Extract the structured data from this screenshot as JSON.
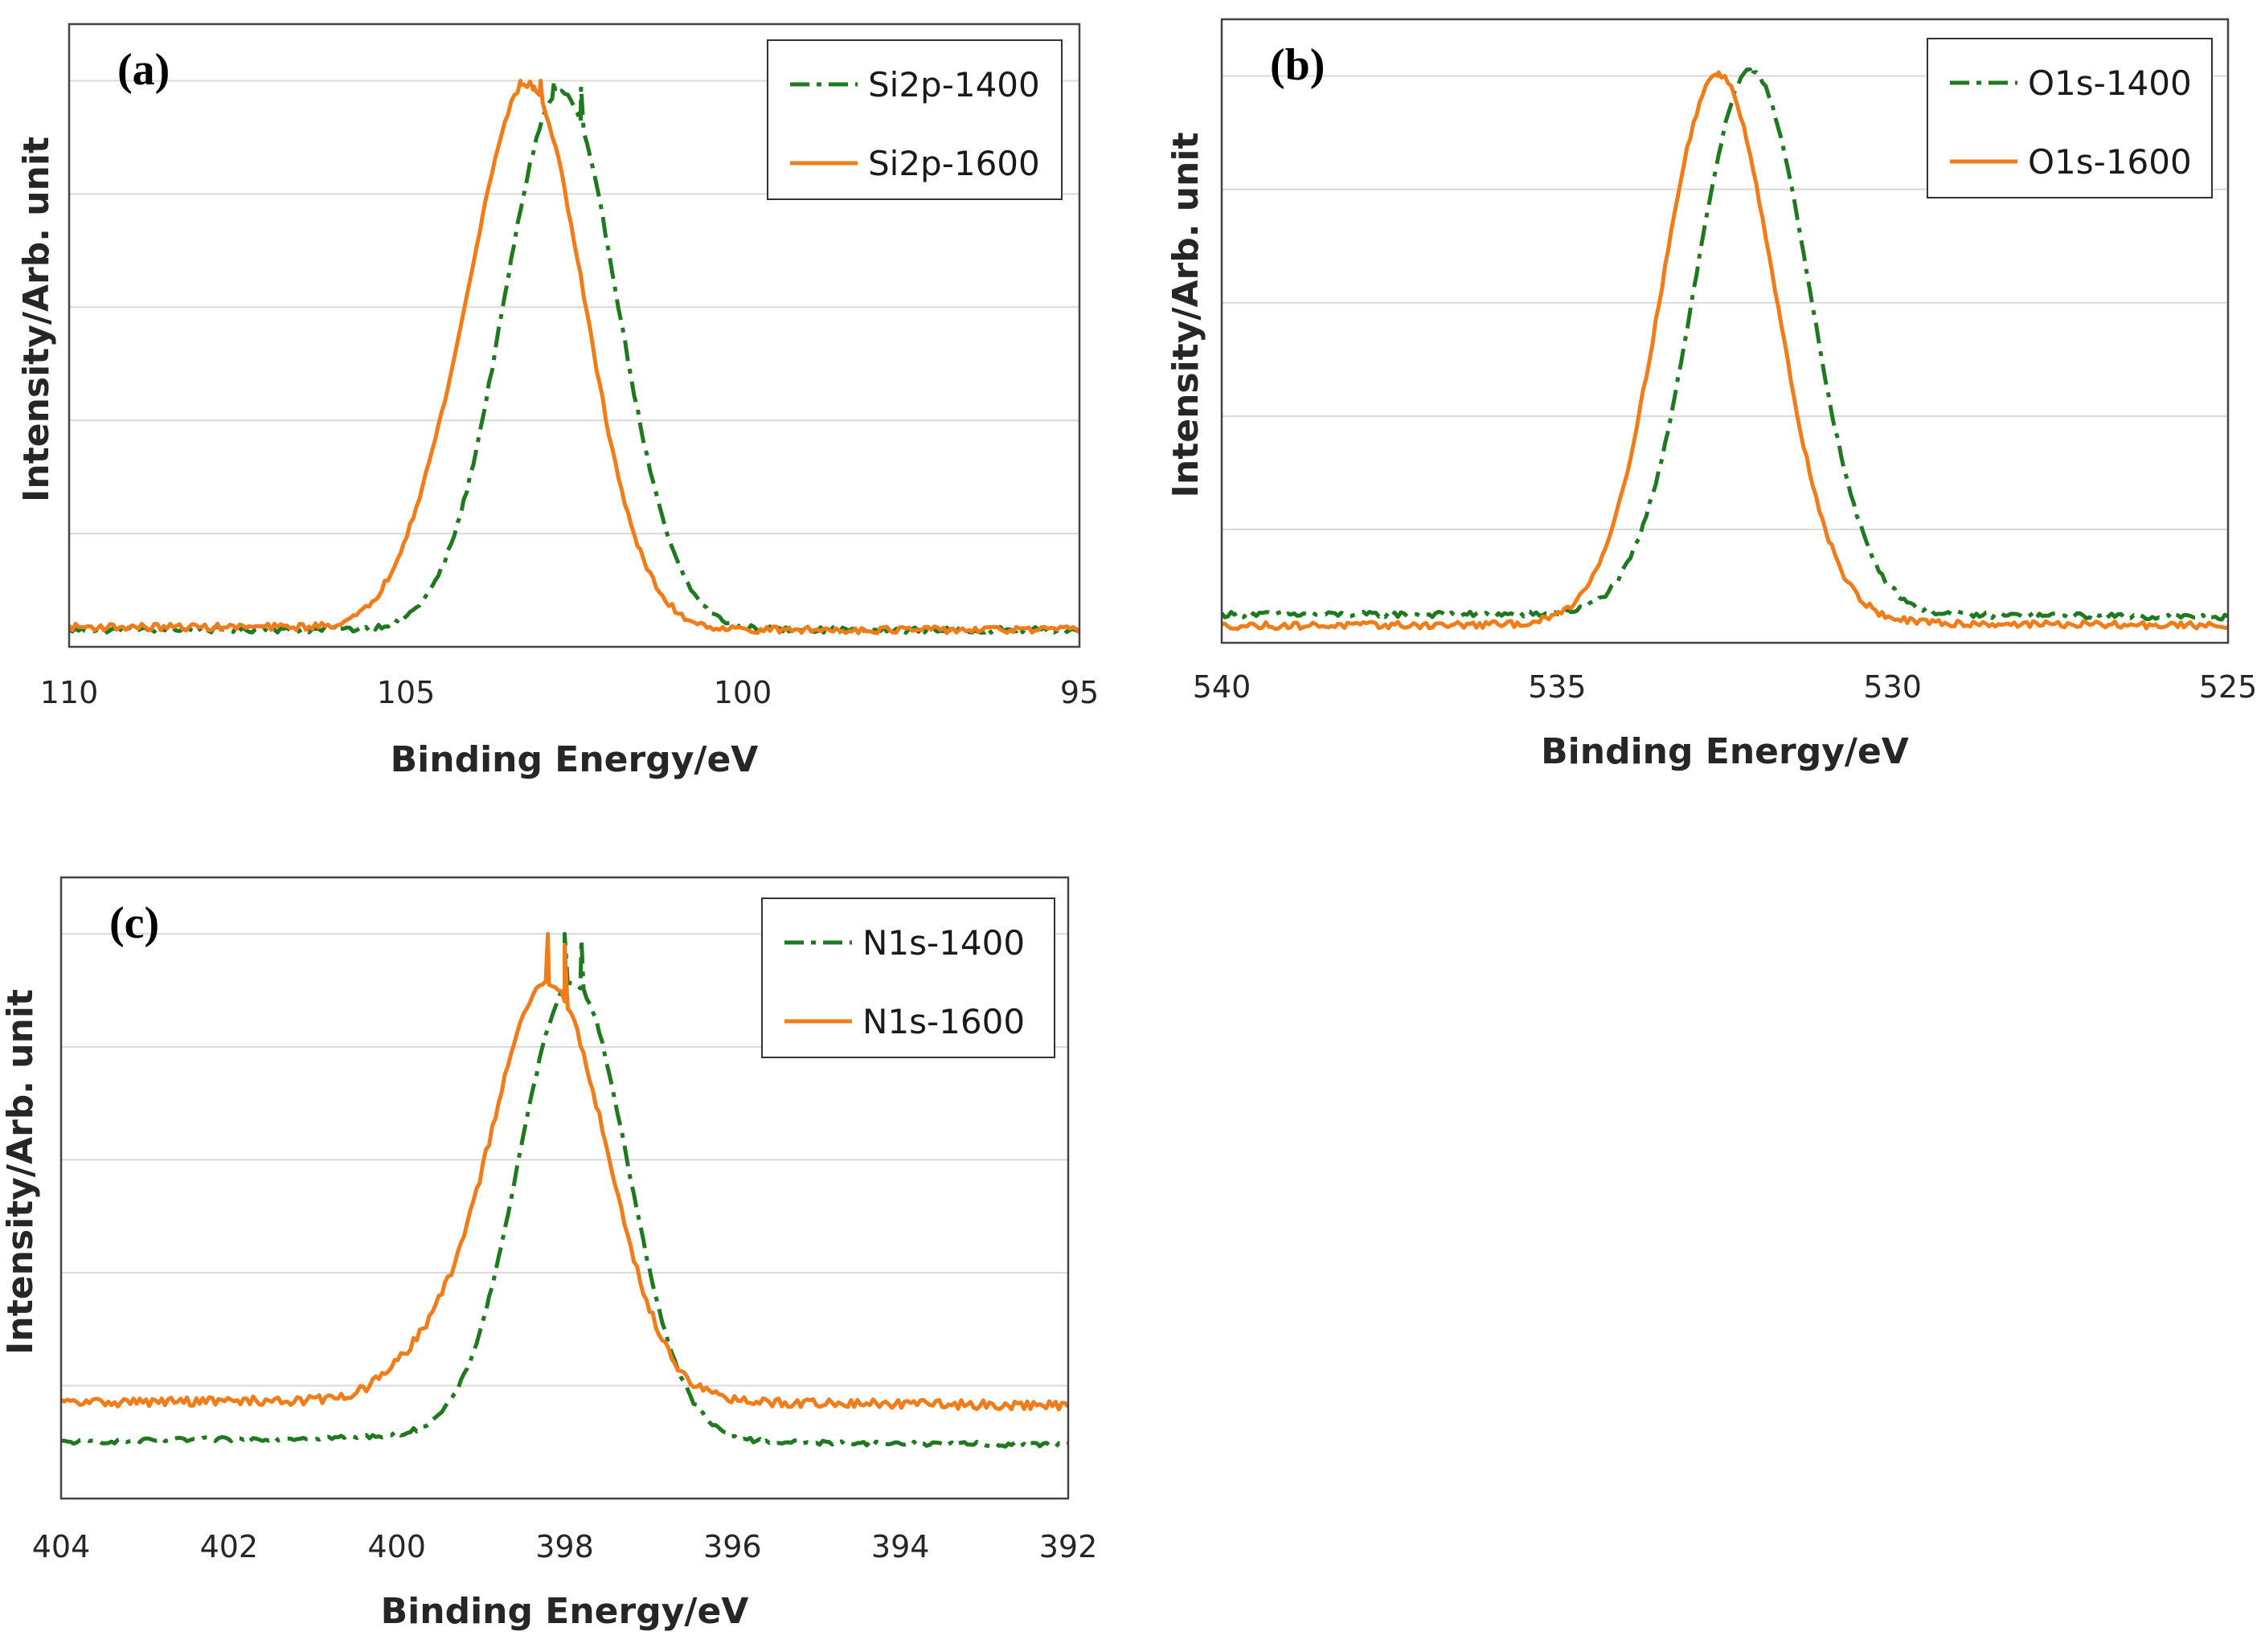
{
  "figure": {
    "background": "#ffffff"
  },
  "colors": {
    "series_1400": "#1f7a1f",
    "series_1600": "#f07d19"
  },
  "chart_data": [
    {
      "id": "a",
      "panel_label": "(a)",
      "type": "line",
      "title": "",
      "xlabel": "Binding Energy/eV",
      "ylabel": "Intensity/Arb. unit",
      "xlim": [
        110,
        95
      ],
      "ylim": [
        0,
        1.1
      ],
      "x_ticks": [
        110,
        105,
        100,
        95
      ],
      "y_gridlines": [
        0.2,
        0.4,
        0.6,
        0.8,
        1.0
      ],
      "grid": true,
      "legend_position": "top-right",
      "series": [
        {
          "name": "Si2p-1400",
          "style": "dashdot",
          "color": "#1f7a1f",
          "peak": 102.7,
          "sigma": 0.85,
          "amplitude": 0.95,
          "baseline": [
            0.03,
            0.03,
            0.03,
            0.03
          ],
          "noise": 0.005,
          "line_points": [
            [
              102.8,
              1.0
            ],
            [
              102.4,
              0.99
            ]
          ]
        },
        {
          "name": "Si2p-1600",
          "style": "solid",
          "color": "#f07d19",
          "peak": 103.2,
          "sigma": 0.85,
          "amplitude": 0.96,
          "baseline": [
            0.035,
            0.035,
            0.03,
            0.03
          ],
          "noise": 0.006,
          "shoulder": {
            "center": 104.7,
            "sigma": 0.5,
            "amplitude": 0.07
          },
          "line_points": [
            [
              103.3,
              1.0
            ],
            [
              103.1,
              0.99
            ],
            [
              103.0,
              1.0
            ]
          ]
        }
      ]
    },
    {
      "id": "b",
      "panel_label": "(b)",
      "type": "line",
      "title": "",
      "xlabel": "Binding Energy/eV",
      "ylabel": "Intensity/Arb. unit",
      "xlim": [
        540,
        525
      ],
      "ylim": [
        0,
        1.1
      ],
      "x_ticks": [
        540,
        535,
        530,
        525
      ],
      "y_gridlines": [
        0.2,
        0.4,
        0.6,
        0.8,
        1.0
      ],
      "grid": true,
      "legend_position": "top-right",
      "series": [
        {
          "name": "O1s-1400",
          "style": "dashdot",
          "color": "#1f7a1f",
          "peak": 532.1,
          "sigma": 0.85,
          "amplitude": 0.96,
          "baseline": [
            0.05,
            0.05,
            0.05,
            0.045
          ],
          "noise": 0.005,
          "line_points": [
            [
              532.1,
              1.0
            ]
          ]
        },
        {
          "name": "O1s-1600",
          "style": "solid",
          "color": "#f07d19",
          "peak": 532.6,
          "sigma": 0.85,
          "amplitude": 0.97,
          "baseline": [
            0.03,
            0.032,
            0.035,
            0.03
          ],
          "noise": 0.006,
          "line_points": [
            [
              532.6,
              1.0
            ]
          ]
        }
      ]
    },
    {
      "id": "c",
      "panel_label": "(c)",
      "type": "line",
      "title": "",
      "xlabel": "Binding Energy/eV",
      "ylabel": "Intensity/Arb. unit",
      "xlim": [
        404,
        392
      ],
      "ylim": [
        0,
        1.1
      ],
      "x_ticks": [
        404,
        402,
        400,
        398,
        396,
        394,
        392
      ],
      "y_gridlines": [
        0.2,
        0.4,
        0.6,
        0.8,
        1.0
      ],
      "grid": true,
      "legend_position": "top-right",
      "series": [
        {
          "name": "N1s-1400",
          "style": "dashdot",
          "color": "#1f7a1f",
          "peak": 397.9,
          "sigma": 0.65,
          "amplitude": 0.81,
          "baseline": [
            0.1,
            0.11,
            0.1,
            0.095
          ],
          "noise": 0.004,
          "line_points": [
            [
              398.0,
              1.0
            ],
            [
              397.8,
              0.99
            ]
          ]
        },
        {
          "name": "N1s-1600",
          "style": "solid",
          "color": "#f07d19",
          "peak": 398.2,
          "sigma": 0.7,
          "amplitude": 0.74,
          "baseline": [
            0.17,
            0.175,
            0.17,
            0.165
          ],
          "noise": 0.008,
          "shoulder": {
            "center": 399.7,
            "sigma": 0.45,
            "amplitude": 0.05
          },
          "line_points": [
            [
              398.2,
              1.0
            ],
            [
              398.0,
              0.98
            ]
          ]
        }
      ]
    }
  ]
}
